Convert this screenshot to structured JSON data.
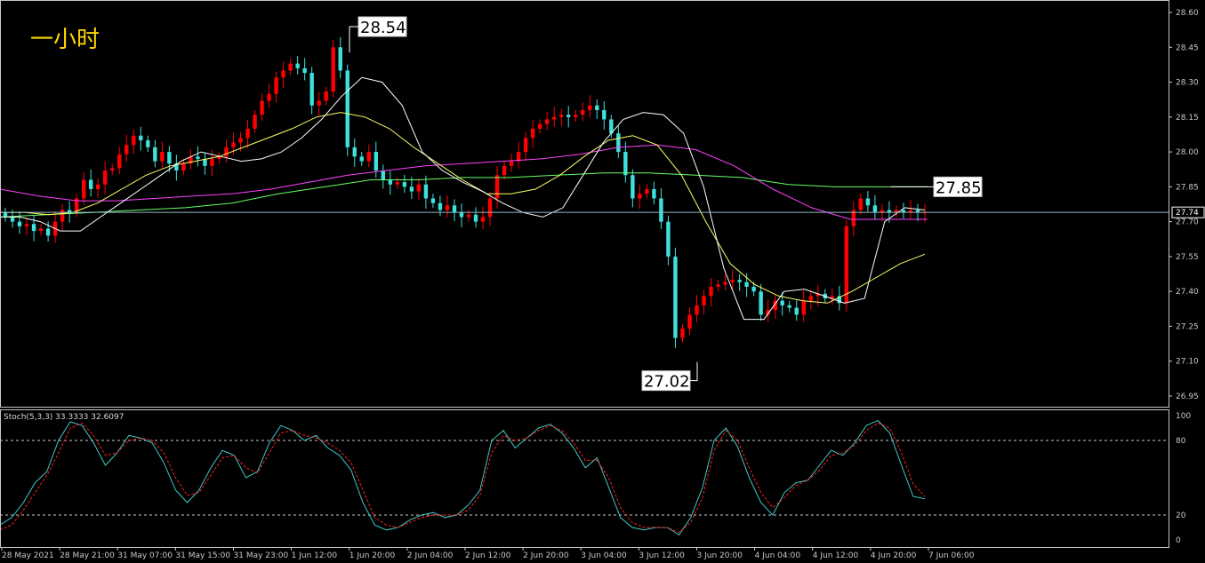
{
  "timeframe_label": "一小时",
  "stoch_label": "Stoch(5,3,3) 33.3333 32.6097",
  "colors": {
    "background": "#000000",
    "bull_candle": "#ff0000",
    "bear_candle": "#3ee0dc",
    "ma_short": "#ffffff",
    "ma_mid": "#ffff66",
    "ma_long_magenta": "#ff40ff",
    "ma_long_green": "#66ff66",
    "stoch_main": "#3ec8c8",
    "stoch_signal": "#ff2020",
    "grid_dashed": "#c8c8c8"
  },
  "chart_data": [
    {
      "type": "candlestick",
      "title": "",
      "ylim": [
        26.9,
        28.64
      ],
      "y_ticks": [
        "28.60",
        "28.45",
        "28.30",
        "28.15",
        "28.00",
        "27.85",
        "27.70",
        "27.55",
        "27.40",
        "27.25",
        "27.10",
        "26.95"
      ],
      "x_ticks": [
        "28 May 2021",
        "28 May 21:00",
        "31 May 07:00",
        "31 May 15:00",
        "31 May 23:00",
        "1 Jun 12:00",
        "1 Jun 20:00",
        "2 Jun 04:00",
        "2 Jun 12:00",
        "2 Jun 20:00",
        "3 Jun 04:00",
        "3 Jun 12:00",
        "3 Jun 20:00",
        "4 Jun 04:00",
        "4 Jun 12:00",
        "4 Jun 20:00",
        "7 Jun 06:00"
      ],
      "current_price": "27.74",
      "annotations": [
        {
          "text": "28.54",
          "value": 28.54,
          "note_point": "high"
        },
        {
          "text": "27.85",
          "value": 27.85,
          "note_point": "level"
        },
        {
          "text": "27.02",
          "value": 27.02,
          "note_point": "low"
        }
      ],
      "closes": [
        27.72,
        27.7,
        27.68,
        27.69,
        27.66,
        27.67,
        27.64,
        27.7,
        27.75,
        27.74,
        27.8,
        27.88,
        27.84,
        27.86,
        27.92,
        27.93,
        27.99,
        28.03,
        28.07,
        28.05,
        28.02,
        27.96,
        28.0,
        27.95,
        27.92,
        27.95,
        27.98,
        27.97,
        27.94,
        27.97,
        27.98,
        28.02,
        28.04,
        28.06,
        28.1,
        28.16,
        28.22,
        28.25,
        28.32,
        28.35,
        28.38,
        28.36,
        28.34,
        28.2,
        28.22,
        28.26,
        28.45,
        28.35,
        28.02,
        27.98,
        27.96,
        28.0,
        27.92,
        27.88,
        27.86,
        27.87,
        27.85,
        27.83,
        27.86,
        27.8,
        27.78,
        27.75,
        27.77,
        27.74,
        27.72,
        27.73,
        27.7,
        27.72,
        27.8,
        27.9,
        27.94,
        27.96,
        28.0,
        28.06,
        28.1,
        28.12,
        28.14,
        28.15,
        28.16,
        28.15,
        28.16,
        28.18,
        28.2,
        28.18,
        28.14,
        28.08,
        28.0,
        27.9,
        27.8,
        27.82,
        27.84,
        27.8,
        27.7,
        27.55,
        27.2,
        27.24,
        27.3,
        27.34,
        27.38,
        27.42,
        27.43,
        27.44,
        27.45,
        27.44,
        27.42,
        27.4,
        27.3,
        27.32,
        27.36,
        27.34,
        27.33,
        27.3,
        27.36,
        27.38,
        27.39,
        27.37,
        27.38,
        27.35,
        27.68,
        27.75,
        27.8,
        27.77,
        27.74,
        27.75,
        27.74,
        27.75,
        27.74,
        27.75,
        27.74,
        27.74
      ],
      "ma_short_curve": [
        27.72,
        27.72,
        27.7,
        27.66,
        27.66,
        27.72,
        27.78,
        27.84,
        27.9,
        27.96,
        28.0,
        27.98,
        27.96,
        27.97,
        28.0,
        28.06,
        28.14,
        28.24,
        28.32,
        28.3,
        28.2,
        28.0,
        27.92,
        27.87,
        27.83,
        27.78,
        27.74,
        27.72,
        27.76,
        27.9,
        28.04,
        28.14,
        28.17,
        28.16,
        28.08,
        27.85,
        27.5,
        27.28,
        27.28,
        27.4,
        27.41,
        27.38,
        27.35,
        27.37,
        27.7,
        27.76,
        27.75
      ],
      "ma_mid_curve": [
        27.74,
        27.74,
        27.73,
        27.74,
        27.78,
        27.84,
        27.9,
        27.94,
        27.96,
        27.98,
        28.02,
        28.06,
        28.1,
        28.15,
        28.17,
        28.15,
        28.1,
        28.02,
        27.95,
        27.88,
        27.82,
        27.82,
        27.84,
        27.9,
        27.98,
        28.05,
        28.07,
        28.03,
        27.9,
        27.7,
        27.52,
        27.43,
        27.38,
        27.36,
        27.35,
        27.4,
        27.46,
        27.52,
        27.56
      ],
      "ma_long_magenta_curve": [
        27.84,
        27.81,
        27.79,
        27.79,
        27.8,
        27.81,
        27.82,
        27.84,
        27.87,
        27.9,
        27.92,
        27.94,
        27.95,
        27.96,
        27.97,
        27.99,
        28.02,
        28.03,
        28.01,
        27.94,
        27.84,
        27.76,
        27.71,
        27.71,
        27.71
      ],
      "ma_long_green_curve": [
        27.72,
        27.73,
        27.74,
        27.75,
        27.76,
        27.78,
        27.82,
        27.85,
        27.88,
        27.88,
        27.89,
        27.89,
        27.9,
        27.91,
        27.91,
        27.9,
        27.89,
        27.86,
        27.85,
        27.85,
        27.85
      ]
    },
    {
      "type": "line",
      "title": "",
      "ylim": [
        0,
        100
      ],
      "y_ticks": [
        "100",
        "80",
        "20",
        "0"
      ],
      "levels": [
        80,
        20
      ],
      "series": [
        {
          "values": [
            12,
            18,
            30,
            46,
            55,
            80,
            95,
            92,
            78,
            60,
            70,
            84,
            82,
            78,
            62,
            40,
            30,
            40,
            58,
            72,
            68,
            50,
            55,
            78,
            92,
            88,
            80,
            84,
            74,
            68,
            56,
            30,
            12,
            8,
            10,
            16,
            20,
            22,
            18,
            20,
            28,
            40,
            80,
            88,
            74,
            82,
            90,
            93,
            86,
            74,
            58,
            66,
            42,
            18,
            10,
            8,
            10,
            10,
            4,
            18,
            42,
            80,
            90,
            75,
            50,
            30,
            20,
            38,
            46,
            48,
            60,
            72,
            68,
            78,
            92,
            96,
            86,
            60,
            35,
            33
          ]
        },
        {
          "values": [
            8,
            12,
            24,
            38,
            52,
            70,
            90,
            94,
            84,
            68,
            70,
            80,
            82,
            80,
            70,
            50,
            36,
            38,
            52,
            66,
            68,
            58,
            54,
            70,
            86,
            88,
            84,
            82,
            78,
            72,
            62,
            40,
            18,
            12,
            10,
            14,
            18,
            20,
            20,
            20,
            24,
            36,
            70,
            84,
            80,
            82,
            88,
            92,
            88,
            78,
            64,
            64,
            50,
            26,
            14,
            10,
            10,
            10,
            6,
            14,
            34,
            72,
            88,
            80,
            58,
            38,
            26,
            34,
            44,
            48,
            56,
            68,
            70,
            76,
            88,
            94,
            90,
            70,
            45,
            35
          ]
        }
      ]
    }
  ]
}
